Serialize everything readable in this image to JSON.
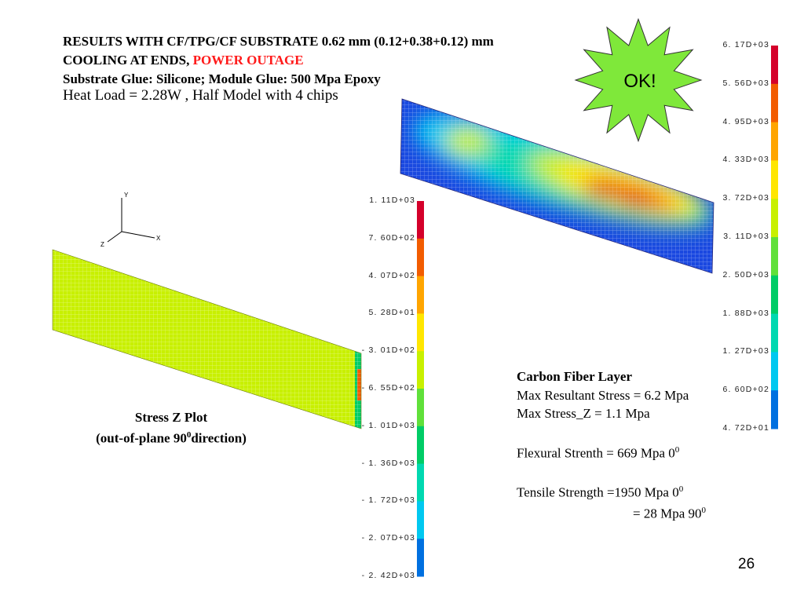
{
  "header": {
    "line1": "RESULTS WITH CF/TPG/CF SUBSTRATE 0.62 mm (0.12+0.38+0.12) mm",
    "line2_prefix": "COOLING AT ENDS, ",
    "line2_highlight": "POWER OUTAGE",
    "line3": "Substrate Glue: Silicone;  Module Glue: 500 Mpa Epoxy",
    "heat_load": "Heat Load = 2.28W , Half Model with 4 chips"
  },
  "badge": {
    "label": "OK!"
  },
  "axes_triad": {
    "y": "Y",
    "x": "X",
    "z": "Z"
  },
  "right_legend": {
    "ticks": [
      "6. 17D+03",
      "5. 56D+03",
      "4. 95D+03",
      "4. 33D+03",
      "3. 72D+03",
      "3. 11D+03",
      "2. 50D+03",
      "1. 88D+03",
      "1. 27D+03",
      "6. 60D+02",
      "4. 72D+01"
    ],
    "colors": [
      "#d4002a",
      "#f25c00",
      "#ffa500",
      "#ffe600",
      "#c8f000",
      "#60e03a",
      "#00cc66",
      "#00d8b0",
      "#00c8f0",
      "#0070e0",
      "#0000c8"
    ]
  },
  "left_legend": {
    "ticks": [
      "1. 11D+03",
      "7. 60D+02",
      "4. 07D+02",
      "5. 28D+01",
      "- 3. 01D+02",
      "- 6. 55D+02",
      "- 1. 01D+03",
      "- 1. 36D+03",
      "- 1. 72D+03",
      "- 2. 07D+03",
      "- 2. 42D+03"
    ],
    "colors": [
      "#d4002a",
      "#f25c00",
      "#ffa500",
      "#ffe600",
      "#c8f000",
      "#60e03a",
      "#00cc66",
      "#00d8b0",
      "#00c8f0",
      "#0070e0",
      "#0000c8"
    ]
  },
  "stress_caption": {
    "line1": "Stress Z Plot",
    "line2_prefix": "(out-of-plane 90",
    "line2_sup": "0",
    "line2_suffix": "direction)"
  },
  "notes": {
    "title": "Carbon Fiber Layer",
    "max_resultant": "Max Resultant Stress = 6.2 Mpa",
    "max_z": "Max Stress_Z  =  1.1 Mpa",
    "flexural": "Flexural Strenth = 669 Mpa 0",
    "flexural_sup": "0",
    "tensile": "Tensile Strength  =1950 Mpa 0",
    "tensile_sup": "0",
    "tensile2": "= 28 Mpa 90",
    "tensile2_sup": "0"
  },
  "page_number": "26"
}
